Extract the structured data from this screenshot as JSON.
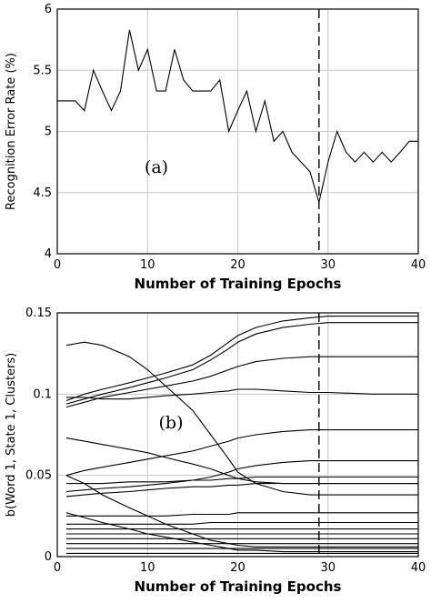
{
  "chart_data": [
    {
      "type": "line",
      "panel_label": "(a)",
      "xlabel": "Number of Training Epochs",
      "ylabel": "Recognition Error Rate (%)",
      "xlim": [
        0,
        40
      ],
      "ylim": [
        4,
        6
      ],
      "xticks": [
        "0",
        "10",
        "20",
        "30",
        "40"
      ],
      "yticks": [
        "4",
        "4.5",
        "5",
        "5.5",
        "6"
      ],
      "grid": true,
      "marker_x": 29,
      "series": [
        {
          "x": [
            0,
            1,
            2,
            3,
            4,
            5,
            6,
            7,
            8,
            9,
            10,
            11,
            12,
            13,
            14,
            15,
            16,
            17,
            18,
            19,
            20,
            21,
            22,
            23,
            24,
            25,
            26,
            27,
            28,
            29,
            30,
            31,
            32,
            33,
            34,
            35,
            36,
            37,
            38,
            39,
            40
          ],
          "values": [
            5.25,
            5.25,
            5.25,
            5.17,
            5.5,
            5.33,
            5.17,
            5.33,
            5.83,
            5.5,
            5.67,
            5.33,
            5.33,
            5.67,
            5.42,
            5.33,
            5.33,
            5.33,
            5.42,
            5.0,
            5.17,
            5.33,
            5.0,
            5.25,
            4.92,
            5.0,
            4.83,
            4.75,
            4.67,
            4.42,
            4.75,
            5.0,
            4.83,
            4.75,
            4.83,
            4.75,
            4.83,
            4.75,
            4.83,
            4.92,
            4.92
          ]
        }
      ]
    },
    {
      "type": "line",
      "panel_label": "(b)",
      "xlabel": "Number of Training Epochs",
      "ylabel": "b(Word 1, State 1, Clusters)",
      "xlim": [
        0,
        40
      ],
      "ylim": [
        0,
        0.15
      ],
      "xticks": [
        "0",
        "10",
        "20",
        "30",
        "40"
      ],
      "yticks": [
        "0",
        "0.05",
        "0.1",
        "0.15"
      ],
      "grid": true,
      "marker_x": 29,
      "series": [
        {
          "x": [
            1,
            3,
            5,
            8,
            10,
            12,
            15,
            17,
            19,
            20,
            22,
            25,
            28,
            30,
            35,
            40
          ],
          "values": [
            0.13,
            0.132,
            0.13,
            0.123,
            0.115,
            0.105,
            0.09,
            0.075,
            0.06,
            0.052,
            0.045,
            0.04,
            0.038,
            0.038,
            0.038,
            0.038
          ]
        },
        {
          "x": [
            1,
            3,
            5,
            8,
            10,
            12,
            15,
            17,
            19,
            20,
            22,
            25,
            28,
            30,
            35,
            40
          ],
          "values": [
            0.096,
            0.1,
            0.103,
            0.107,
            0.11,
            0.113,
            0.118,
            0.124,
            0.132,
            0.136,
            0.141,
            0.145,
            0.147,
            0.148,
            0.148,
            0.148
          ]
        },
        {
          "x": [
            1,
            3,
            5,
            8,
            10,
            12,
            15,
            17,
            19,
            20,
            22,
            25,
            28,
            30,
            35,
            40
          ],
          "values": [
            0.094,
            0.097,
            0.1,
            0.104,
            0.107,
            0.11,
            0.115,
            0.121,
            0.128,
            0.132,
            0.137,
            0.141,
            0.143,
            0.144,
            0.144,
            0.144
          ]
        },
        {
          "x": [
            1,
            3,
            5,
            8,
            10,
            12,
            15,
            17,
            19,
            20,
            22,
            25,
            28,
            30,
            35,
            40
          ],
          "values": [
            0.092,
            0.095,
            0.098,
            0.101,
            0.103,
            0.105,
            0.108,
            0.111,
            0.115,
            0.117,
            0.12,
            0.122,
            0.123,
            0.123,
            0.123,
            0.123
          ]
        },
        {
          "x": [
            1,
            3,
            5,
            8,
            10,
            12,
            15,
            17,
            19,
            20,
            22,
            25,
            28,
            30,
            35,
            40
          ],
          "values": [
            0.098,
            0.098,
            0.097,
            0.097,
            0.098,
            0.099,
            0.1,
            0.101,
            0.102,
            0.103,
            0.103,
            0.102,
            0.101,
            0.101,
            0.1,
            0.1
          ]
        },
        {
          "x": [
            1,
            3,
            5,
            8,
            10,
            12,
            15,
            17,
            19,
            20,
            22,
            25,
            28,
            30,
            35,
            40
          ],
          "values": [
            0.073,
            0.071,
            0.069,
            0.066,
            0.064,
            0.061,
            0.057,
            0.054,
            0.05,
            0.048,
            0.046,
            0.045,
            0.045,
            0.045,
            0.045,
            0.045
          ]
        },
        {
          "x": [
            1,
            3,
            5,
            8,
            10,
            12,
            15,
            17,
            19,
            20,
            22,
            25,
            28,
            30,
            35,
            40
          ],
          "values": [
            0.05,
            0.053,
            0.055,
            0.058,
            0.06,
            0.062,
            0.065,
            0.068,
            0.071,
            0.073,
            0.075,
            0.077,
            0.078,
            0.078,
            0.078,
            0.078
          ]
        },
        {
          "x": [
            1,
            3,
            5,
            8,
            10,
            12,
            15,
            17,
            19,
            20,
            22,
            25,
            28,
            30,
            35,
            40
          ],
          "values": [
            0.04,
            0.041,
            0.042,
            0.043,
            0.044,
            0.045,
            0.047,
            0.049,
            0.052,
            0.054,
            0.056,
            0.058,
            0.059,
            0.059,
            0.059,
            0.059
          ]
        },
        {
          "x": [
            1,
            3,
            5,
            8,
            10,
            12,
            15,
            17,
            19,
            20,
            22,
            25,
            28,
            30,
            35,
            40
          ],
          "values": [
            0.045,
            0.045,
            0.045,
            0.046,
            0.046,
            0.046,
            0.047,
            0.047,
            0.048,
            0.048,
            0.049,
            0.049,
            0.049,
            0.049,
            0.049,
            0.049
          ]
        },
        {
          "x": [
            1,
            3,
            5,
            8,
            10,
            12,
            15,
            17,
            19,
            20,
            22,
            25,
            28,
            30,
            35,
            40
          ],
          "values": [
            0.037,
            0.038,
            0.039,
            0.04,
            0.041,
            0.042,
            0.043,
            0.043,
            0.044,
            0.044,
            0.045,
            0.045,
            0.045,
            0.045,
            0.045,
            0.045
          ]
        },
        {
          "x": [
            1,
            3,
            5,
            8,
            10,
            12,
            15,
            17,
            19,
            20,
            22,
            25,
            28,
            30,
            35,
            40
          ],
          "values": [
            0.05,
            0.045,
            0.038,
            0.03,
            0.025,
            0.02,
            0.014,
            0.01,
            0.008,
            0.007,
            0.006,
            0.006,
            0.006,
            0.006,
            0.006,
            0.006
          ]
        },
        {
          "x": [
            1,
            3,
            5,
            8,
            10,
            12,
            15,
            17,
            19,
            20,
            22,
            25,
            28,
            30,
            35,
            40
          ],
          "values": [
            0.027,
            0.024,
            0.021,
            0.017,
            0.014,
            0.012,
            0.009,
            0.007,
            0.005,
            0.004,
            0.004,
            0.003,
            0.003,
            0.003,
            0.003,
            0.003
          ]
        },
        {
          "x": [
            1,
            3,
            5,
            8,
            10,
            12,
            15,
            17,
            19,
            20,
            22,
            25,
            28,
            30,
            35,
            40
          ],
          "values": [
            0.025,
            0.025,
            0.025,
            0.025,
            0.025,
            0.025,
            0.026,
            0.026,
            0.026,
            0.027,
            0.027,
            0.027,
            0.027,
            0.027,
            0.027,
            0.027
          ]
        },
        {
          "x": [
            1,
            3,
            5,
            8,
            10,
            12,
            15,
            17,
            19,
            20,
            22,
            25,
            28,
            30,
            35,
            40
          ],
          "values": [
            0.02,
            0.02,
            0.02,
            0.02,
            0.02,
            0.02,
            0.02,
            0.021,
            0.021,
            0.021,
            0.021,
            0.021,
            0.021,
            0.021,
            0.021,
            0.021
          ]
        },
        {
          "x": [
            1,
            3,
            5,
            8,
            10,
            12,
            15,
            17,
            19,
            20,
            22,
            25,
            28,
            30,
            35,
            40
          ],
          "values": [
            0.017,
            0.017,
            0.017,
            0.017,
            0.017,
            0.017,
            0.017,
            0.017,
            0.017,
            0.017,
            0.017,
            0.017,
            0.017,
            0.017,
            0.017,
            0.017
          ]
        },
        {
          "x": [
            1,
            3,
            5,
            8,
            10,
            12,
            15,
            17,
            19,
            20,
            22,
            25,
            28,
            30,
            35,
            40
          ],
          "values": [
            0.014,
            0.014,
            0.014,
            0.014,
            0.014,
            0.014,
            0.014,
            0.014,
            0.014,
            0.014,
            0.014,
            0.014,
            0.014,
            0.014,
            0.014,
            0.014
          ]
        },
        {
          "x": [
            1,
            3,
            5,
            8,
            10,
            12,
            15,
            17,
            19,
            20,
            22,
            25,
            28,
            30,
            35,
            40
          ],
          "values": [
            0.011,
            0.011,
            0.011,
            0.011,
            0.011,
            0.011,
            0.011,
            0.011,
            0.011,
            0.011,
            0.011,
            0.011,
            0.011,
            0.011,
            0.011,
            0.011
          ]
        },
        {
          "x": [
            1,
            3,
            5,
            8,
            10,
            12,
            15,
            17,
            19,
            20,
            22,
            25,
            28,
            30,
            35,
            40
          ],
          "values": [
            0.008,
            0.008,
            0.008,
            0.008,
            0.008,
            0.008,
            0.008,
            0.008,
            0.008,
            0.008,
            0.008,
            0.008,
            0.008,
            0.008,
            0.008,
            0.008
          ]
        },
        {
          "x": [
            1,
            3,
            5,
            8,
            10,
            12,
            15,
            17,
            19,
            20,
            22,
            25,
            28,
            30,
            35,
            40
          ],
          "values": [
            0.005,
            0.005,
            0.005,
            0.005,
            0.005,
            0.005,
            0.005,
            0.005,
            0.005,
            0.005,
            0.005,
            0.005,
            0.005,
            0.005,
            0.005,
            0.005
          ]
        },
        {
          "x": [
            1,
            3,
            5,
            8,
            10,
            12,
            15,
            17,
            19,
            20,
            22,
            25,
            28,
            30,
            35,
            40
          ],
          "values": [
            0.002,
            0.002,
            0.002,
            0.002,
            0.002,
            0.002,
            0.002,
            0.002,
            0.002,
            0.002,
            0.002,
            0.002,
            0.002,
            0.002,
            0.002,
            0.002
          ]
        }
      ]
    }
  ]
}
